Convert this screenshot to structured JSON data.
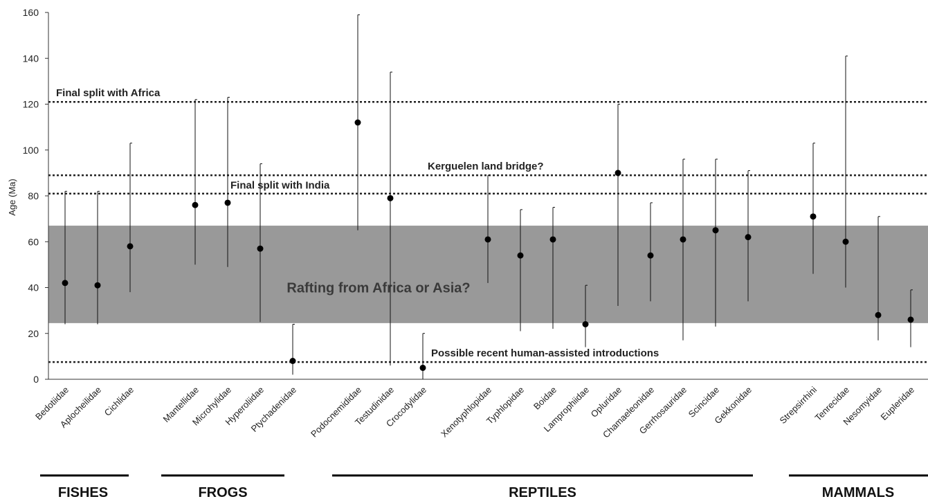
{
  "chart_data": {
    "type": "scatter",
    "ylabel": "Age (Ma)",
    "ylim": [
      0,
      160
    ],
    "yticks": [
      0,
      20,
      40,
      60,
      80,
      100,
      120,
      140,
      160
    ],
    "grid": false,
    "categories": [
      {
        "name": "Bedotiidae",
        "group": "FISHES",
        "value": 42,
        "low": 24,
        "high": 82
      },
      {
        "name": "Aplocheilidae",
        "group": "FISHES",
        "value": 41,
        "low": 24,
        "high": 82
      },
      {
        "name": "Cichlidae",
        "group": "FISHES",
        "value": 58,
        "low": 38,
        "high": 103
      },
      {
        "name": "Mantellidae",
        "group": "FROGS",
        "value": 76,
        "low": 50,
        "high": 122
      },
      {
        "name": "Microhylidae",
        "group": "FROGS",
        "value": 77,
        "low": 49,
        "high": 123
      },
      {
        "name": "Hyperoliidae",
        "group": "FROGS",
        "value": 57,
        "low": 25,
        "high": 94
      },
      {
        "name": "Ptychadenidae",
        "group": "FROGS",
        "value": 8,
        "low": 2,
        "high": 24
      },
      {
        "name": "Podocnemididae",
        "group": "REPTILES",
        "value": 112,
        "low": 65,
        "high": 159
      },
      {
        "name": "Testudinidae",
        "group": "REPTILES",
        "value": 79,
        "low": 6,
        "high": 134
      },
      {
        "name": "Crocodylidae",
        "group": "REPTILES",
        "value": 5,
        "low": 0,
        "high": 20
      },
      {
        "name": "Xenotyphlopidae",
        "group": "REPTILES",
        "value": 61,
        "low": 42,
        "high": 89
      },
      {
        "name": "Typhlopidae",
        "group": "REPTILES",
        "value": 54,
        "low": 21,
        "high": 74
      },
      {
        "name": "Boidae",
        "group": "REPTILES",
        "value": 61,
        "low": 22,
        "high": 75
      },
      {
        "name": "Lamprophiidae",
        "group": "REPTILES",
        "value": 24,
        "low": 14,
        "high": 41
      },
      {
        "name": "Opluridae",
        "group": "REPTILES",
        "value": 90,
        "low": 32,
        "high": 120
      },
      {
        "name": "Chamaeleonidae",
        "group": "REPTILES",
        "value": 54,
        "low": 34,
        "high": 77
      },
      {
        "name": "Gerrhosauridae",
        "group": "REPTILES",
        "value": 61,
        "low": 17,
        "high": 96
      },
      {
        "name": "Scincidae",
        "group": "REPTILES",
        "value": 65,
        "low": 23,
        "high": 96
      },
      {
        "name": "Gekkonidae",
        "group": "REPTILES",
        "value": 62,
        "low": 34,
        "high": 91
      },
      {
        "name": "Strepsirrhini",
        "group": "MAMMALS",
        "value": 71,
        "low": 46,
        "high": 103
      },
      {
        "name": "Tenrecidae",
        "group": "MAMMALS",
        "value": 60,
        "low": 40,
        "high": 141
      },
      {
        "name": "Nesomyidae",
        "group": "MAMMALS",
        "value": 28,
        "low": 17,
        "high": 71
      },
      {
        "name": "Eupleridae",
        "group": "MAMMALS",
        "value": 26,
        "low": 14,
        "high": 39
      }
    ],
    "groups": [
      "FISHES",
      "FROGS",
      "REPTILES",
      "MAMMALS"
    ],
    "reference_lines": [
      {
        "label": "Final split with Africa",
        "y": 121
      },
      {
        "label": "Kerguelen land bridge?",
        "y": 89
      },
      {
        "label": "Final split with India",
        "y": 81
      },
      {
        "label": "Possible recent human-assisted introductions",
        "y": 7.5
      }
    ],
    "band": {
      "label": "Rafting from Africa or Asia?",
      "from": 24.5,
      "to": 67
    }
  }
}
